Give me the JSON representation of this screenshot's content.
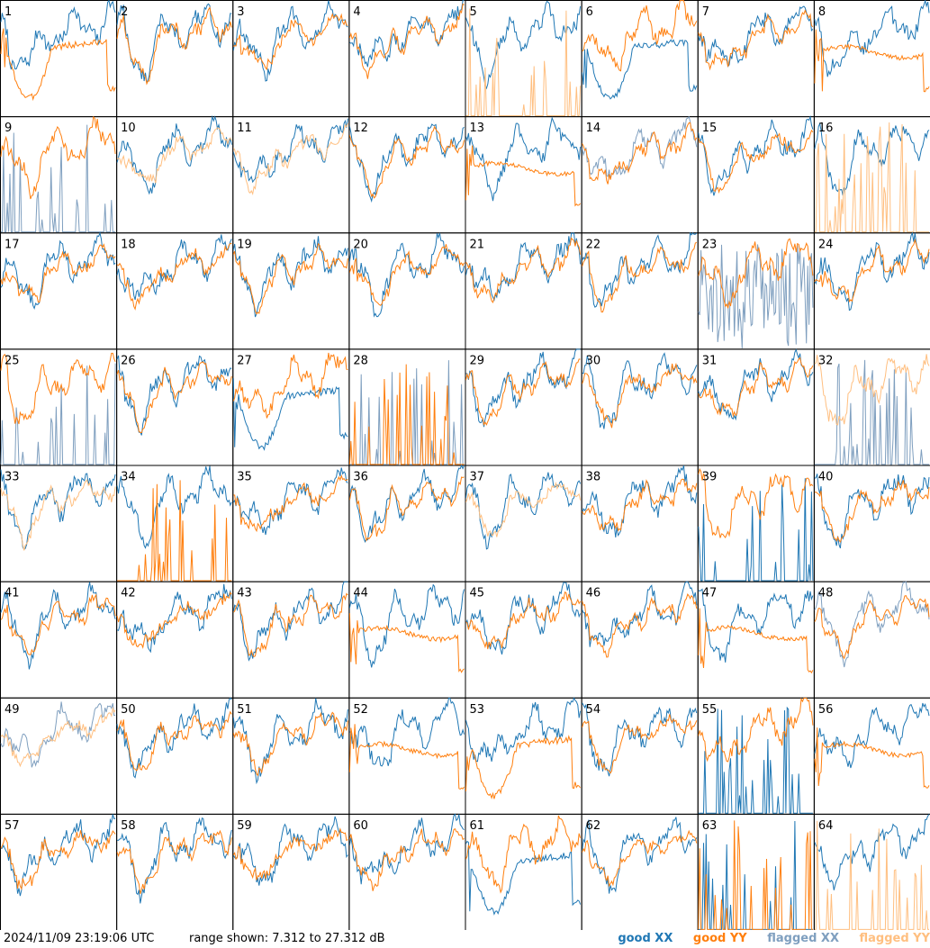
{
  "footer": {
    "timestamp": "2024/11/09 23:19:06 UTC",
    "range_text": "range shown: 7.312 to 27.312 dB"
  },
  "legend": {
    "good_xx": "good XX",
    "good_yy": "good YY",
    "flagged_xx": "flagged XX",
    "flagged_yy": "flagged YY"
  },
  "colors": {
    "good_xx": "#1f77b4",
    "good_yy": "#ff7f0e",
    "flagged_xx": "#7f9fbf",
    "flagged_yy": "#ffbf80"
  },
  "chart_data": {
    "type": "line",
    "ylim": [
      7.312,
      27.312
    ],
    "panels": [
      {
        "id": "1",
        "xx": "good",
        "yy": "good",
        "xx_shape": "normal",
        "yy_shape": "bowl"
      },
      {
        "id": "2",
        "xx": "good",
        "yy": "good",
        "xx_shape": "normal",
        "yy_shape": "normal"
      },
      {
        "id": "3",
        "xx": "good",
        "yy": "good",
        "xx_shape": "normal",
        "yy_shape": "normal"
      },
      {
        "id": "4",
        "xx": "good",
        "yy": "good",
        "xx_shape": "normal",
        "yy_shape": "normal"
      },
      {
        "id": "5",
        "xx": "good",
        "yy": "flagged",
        "xx_shape": "normal",
        "yy_shape": "spiky"
      },
      {
        "id": "6",
        "xx": "good",
        "yy": "good",
        "xx_shape": "bowl",
        "yy_shape": "normal"
      },
      {
        "id": "7",
        "xx": "good",
        "yy": "good",
        "xx_shape": "normal",
        "yy_shape": "normal"
      },
      {
        "id": "8",
        "xx": "good",
        "yy": "good",
        "xx_shape": "normal",
        "yy_shape": "flat"
      },
      {
        "id": "9",
        "xx": "flagged",
        "yy": "good",
        "xx_shape": "spiky",
        "yy_shape": "normal"
      },
      {
        "id": "10",
        "xx": "good",
        "yy": "flagged",
        "xx_shape": "normal",
        "yy_shape": "normal"
      },
      {
        "id": "11",
        "xx": "good",
        "yy": "flagged",
        "xx_shape": "normal",
        "yy_shape": "normal"
      },
      {
        "id": "12",
        "xx": "good",
        "yy": "good",
        "xx_shape": "normal",
        "yy_shape": "normal"
      },
      {
        "id": "13",
        "xx": "good",
        "yy": "good",
        "xx_shape": "normal",
        "yy_shape": "flat"
      },
      {
        "id": "14",
        "xx": "flagged",
        "yy": "good",
        "xx_shape": "normal",
        "yy_shape": "normal"
      },
      {
        "id": "15",
        "xx": "good",
        "yy": "good",
        "xx_shape": "normal",
        "yy_shape": "normal"
      },
      {
        "id": "16",
        "xx": "good",
        "yy": "flagged",
        "xx_shape": "normal",
        "yy_shape": "spiky"
      },
      {
        "id": "17",
        "xx": "good",
        "yy": "good",
        "xx_shape": "normal",
        "yy_shape": "normal"
      },
      {
        "id": "18",
        "xx": "good",
        "yy": "good",
        "xx_shape": "normal",
        "yy_shape": "normal"
      },
      {
        "id": "19",
        "xx": "good",
        "yy": "good",
        "xx_shape": "normal",
        "yy_shape": "normal"
      },
      {
        "id": "20",
        "xx": "good",
        "yy": "good",
        "xx_shape": "normal",
        "yy_shape": "normal"
      },
      {
        "id": "21",
        "xx": "good",
        "yy": "good",
        "xx_shape": "normal",
        "yy_shape": "normal"
      },
      {
        "id": "22",
        "xx": "good",
        "yy": "good",
        "xx_shape": "normal",
        "yy_shape": "normal"
      },
      {
        "id": "23",
        "xx": "flagged",
        "yy": "good",
        "xx_shape": "noisy",
        "yy_shape": "normal"
      },
      {
        "id": "24",
        "xx": "good",
        "yy": "good",
        "xx_shape": "normal",
        "yy_shape": "normal"
      },
      {
        "id": "25",
        "xx": "flagged",
        "yy": "good",
        "xx_shape": "spiky",
        "yy_shape": "normal"
      },
      {
        "id": "26",
        "xx": "good",
        "yy": "good",
        "xx_shape": "normal",
        "yy_shape": "normal"
      },
      {
        "id": "27",
        "xx": "good",
        "yy": "good",
        "xx_shape": "bowl",
        "yy_shape": "normal"
      },
      {
        "id": "28",
        "xx": "flagged",
        "yy": "good",
        "xx_shape": "spiky",
        "yy_shape": "spiky"
      },
      {
        "id": "29",
        "xx": "good",
        "yy": "good",
        "xx_shape": "normal",
        "yy_shape": "normal"
      },
      {
        "id": "30",
        "xx": "good",
        "yy": "good",
        "xx_shape": "normal",
        "yy_shape": "normal"
      },
      {
        "id": "31",
        "xx": "good",
        "yy": "good",
        "xx_shape": "normal",
        "yy_shape": "normal"
      },
      {
        "id": "32",
        "xx": "flagged",
        "yy": "flagged",
        "xx_shape": "spiky",
        "yy_shape": "normal"
      },
      {
        "id": "33",
        "xx": "good",
        "yy": "flagged",
        "xx_shape": "normal",
        "yy_shape": "normal"
      },
      {
        "id": "34",
        "xx": "good",
        "yy": "good",
        "xx_shape": "normal",
        "yy_shape": "spiky"
      },
      {
        "id": "35",
        "xx": "good",
        "yy": "good",
        "xx_shape": "normal",
        "yy_shape": "normal"
      },
      {
        "id": "36",
        "xx": "good",
        "yy": "good",
        "xx_shape": "normal",
        "yy_shape": "normal"
      },
      {
        "id": "37",
        "xx": "good",
        "yy": "flagged",
        "xx_shape": "normal",
        "yy_shape": "normal"
      },
      {
        "id": "38",
        "xx": "good",
        "yy": "good",
        "xx_shape": "normal",
        "yy_shape": "normal"
      },
      {
        "id": "39",
        "xx": "good",
        "yy": "good",
        "xx_shape": "spiky",
        "yy_shape": "normal"
      },
      {
        "id": "40",
        "xx": "good",
        "yy": "good",
        "xx_shape": "normal",
        "yy_shape": "normal"
      },
      {
        "id": "41",
        "xx": "good",
        "yy": "good",
        "xx_shape": "normal",
        "yy_shape": "normal"
      },
      {
        "id": "42",
        "xx": "good",
        "yy": "good",
        "xx_shape": "normal",
        "yy_shape": "normal"
      },
      {
        "id": "43",
        "xx": "good",
        "yy": "good",
        "xx_shape": "normal",
        "yy_shape": "normal"
      },
      {
        "id": "44",
        "xx": "good",
        "yy": "good",
        "xx_shape": "normal",
        "yy_shape": "flat"
      },
      {
        "id": "45",
        "xx": "good",
        "yy": "good",
        "xx_shape": "normal",
        "yy_shape": "normal"
      },
      {
        "id": "46",
        "xx": "good",
        "yy": "good",
        "xx_shape": "normal",
        "yy_shape": "normal"
      },
      {
        "id": "47",
        "xx": "good",
        "yy": "good",
        "xx_shape": "normal",
        "yy_shape": "flat"
      },
      {
        "id": "48",
        "xx": "flagged",
        "yy": "good",
        "xx_shape": "normal",
        "yy_shape": "normal"
      },
      {
        "id": "49",
        "xx": "flagged",
        "yy": "flagged",
        "xx_shape": "normal",
        "yy_shape": "normal"
      },
      {
        "id": "50",
        "xx": "good",
        "yy": "good",
        "xx_shape": "normal",
        "yy_shape": "normal"
      },
      {
        "id": "51",
        "xx": "good",
        "yy": "good",
        "xx_shape": "normal",
        "yy_shape": "normal"
      },
      {
        "id": "52",
        "xx": "good",
        "yy": "good",
        "xx_shape": "normal",
        "yy_shape": "flat"
      },
      {
        "id": "53",
        "xx": "good",
        "yy": "good",
        "xx_shape": "normal",
        "yy_shape": "bowl"
      },
      {
        "id": "54",
        "xx": "good",
        "yy": "good",
        "xx_shape": "normal",
        "yy_shape": "normal"
      },
      {
        "id": "55",
        "xx": "good",
        "yy": "good",
        "xx_shape": "spiky",
        "yy_shape": "normal"
      },
      {
        "id": "56",
        "xx": "good",
        "yy": "good",
        "xx_shape": "normal",
        "yy_shape": "flat"
      },
      {
        "id": "57",
        "xx": "good",
        "yy": "good",
        "xx_shape": "normal",
        "yy_shape": "normal"
      },
      {
        "id": "58",
        "xx": "good",
        "yy": "good",
        "xx_shape": "normal",
        "yy_shape": "normal"
      },
      {
        "id": "59",
        "xx": "good",
        "yy": "good",
        "xx_shape": "normal",
        "yy_shape": "normal"
      },
      {
        "id": "60",
        "xx": "good",
        "yy": "good",
        "xx_shape": "normal",
        "yy_shape": "normal"
      },
      {
        "id": "61",
        "xx": "good",
        "yy": "good",
        "xx_shape": "bowl",
        "yy_shape": "normal"
      },
      {
        "id": "62",
        "xx": "good",
        "yy": "good",
        "xx_shape": "normal",
        "yy_shape": "normal"
      },
      {
        "id": "63",
        "xx": "good",
        "yy": "good",
        "xx_shape": "spiky",
        "yy_shape": "spiky"
      },
      {
        "id": "64",
        "xx": "good",
        "yy": "flagged",
        "xx_shape": "normal",
        "yy_shape": "spiky"
      }
    ]
  }
}
